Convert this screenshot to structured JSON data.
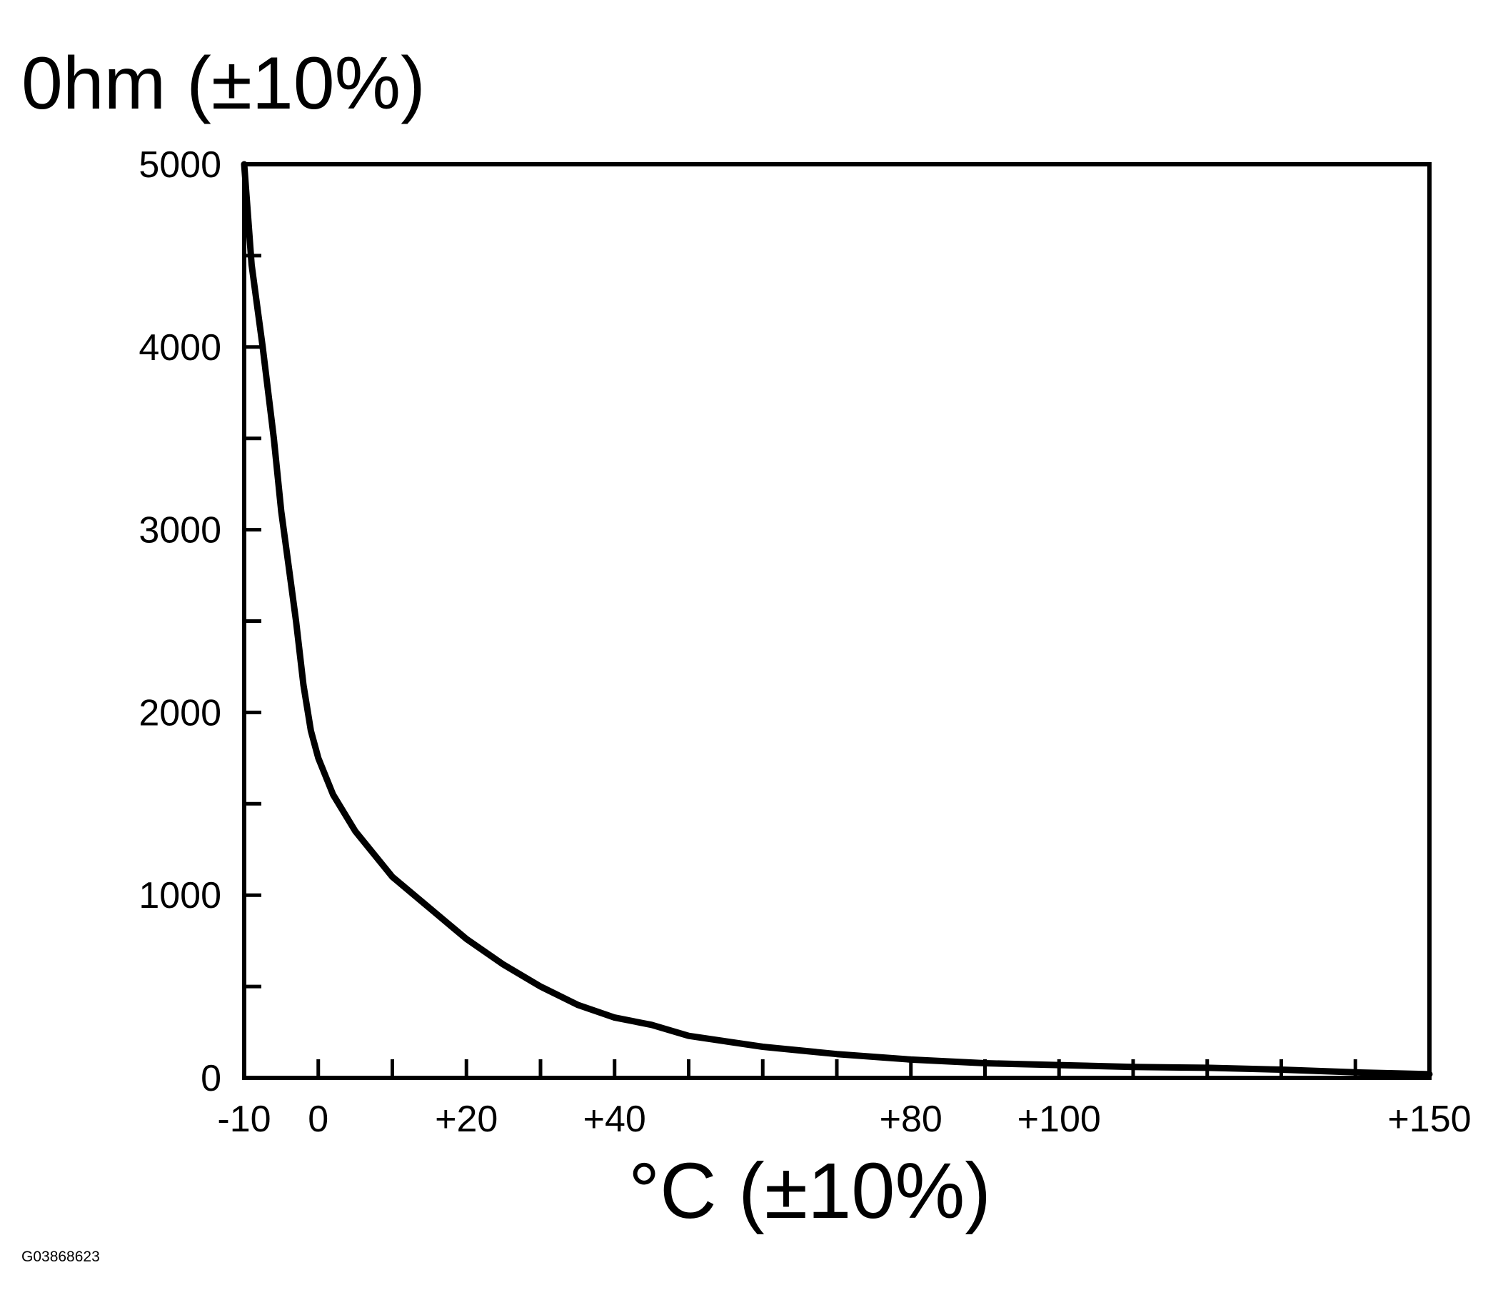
{
  "chart_data": {
    "type": "line",
    "title": "",
    "ylabel": "0hm (±10%)",
    "xlabel": "°C (±10%)",
    "figure_id": "G03868623",
    "xlim": [
      -10,
      150
    ],
    "ylim": [
      0,
      5000
    ],
    "x_tick_labels": [
      {
        "value": -10,
        "label": "-10"
      },
      {
        "value": 0,
        "label": "0"
      },
      {
        "value": 20,
        "label": "+20"
      },
      {
        "value": 40,
        "label": "+40"
      },
      {
        "value": 80,
        "label": "+80"
      },
      {
        "value": 100,
        "label": "+100"
      },
      {
        "value": 150,
        "label": "+150"
      }
    ],
    "x_minor_ticks": [
      0,
      10,
      20,
      30,
      40,
      50,
      60,
      70,
      80,
      90,
      100,
      110,
      120,
      130,
      140
    ],
    "y_tick_labels": [
      {
        "value": 0,
        "label": "0"
      },
      {
        "value": 1000,
        "label": "1000"
      },
      {
        "value": 2000,
        "label": "2000"
      },
      {
        "value": 3000,
        "label": "3000"
      },
      {
        "value": 4000,
        "label": "4000"
      },
      {
        "value": 5000,
        "label": "5000"
      }
    ],
    "y_minor_ticks": [
      500,
      1500,
      2500,
      3500,
      4500
    ],
    "grid": false,
    "legend": "none",
    "line_color": "#000000",
    "series": [
      {
        "x": [
          -10,
          -9,
          -7.5,
          -6,
          -5,
          -4,
          -3,
          -2,
          -1,
          0,
          2,
          5,
          10,
          15,
          20,
          25,
          30,
          35,
          40,
          45,
          50,
          60,
          70,
          80,
          90,
          100,
          110,
          120,
          130,
          140,
          150
        ],
        "values": [
          5000,
          4450,
          4000,
          3500,
          3100,
          2800,
          2500,
          2150,
          1900,
          1750,
          1550,
          1350,
          1100,
          930,
          760,
          620,
          500,
          400,
          330,
          290,
          230,
          170,
          130,
          100,
          80,
          70,
          60,
          55,
          45,
          30,
          20
        ]
      }
    ]
  }
}
